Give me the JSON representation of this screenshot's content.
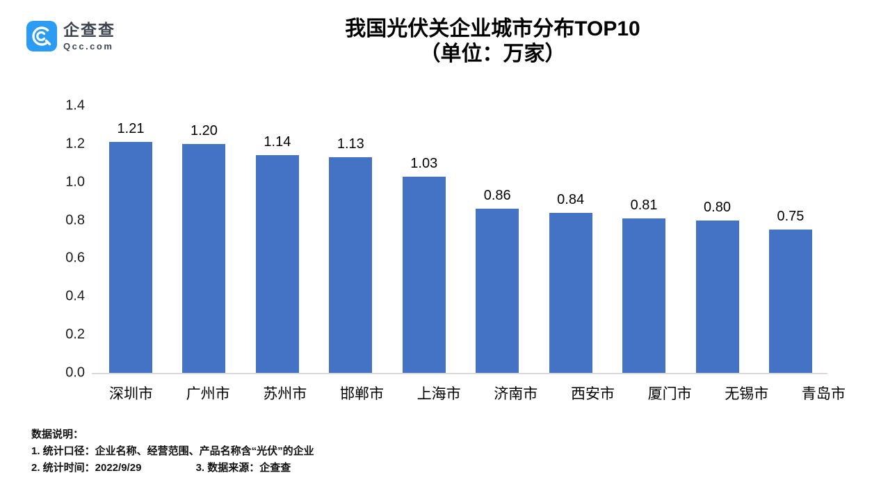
{
  "logo": {
    "brand_cn": "企查查",
    "brand_domain": "Qcc.com",
    "icon_color": "#2b9cf2"
  },
  "title": {
    "line1": "我国光伏关企业城市分布TOP10",
    "line2": "（单位：万家）"
  },
  "chart_data": {
    "type": "bar",
    "title": "我国光伏关企业城市分布TOP10（单位：万家）",
    "categories": [
      "深圳市",
      "广州市",
      "苏州市",
      "邯郸市",
      "上海市",
      "济南市",
      "西安市",
      "厦门市",
      "无锡市",
      "青岛市"
    ],
    "values": [
      1.21,
      1.2,
      1.14,
      1.13,
      1.03,
      0.86,
      0.84,
      0.81,
      0.8,
      0.75
    ],
    "value_labels": [
      "1.21",
      "1.20",
      "1.14",
      "1.13",
      "1.03",
      "0.86",
      "0.84",
      "0.81",
      "0.80",
      "0.75"
    ],
    "xlabel": "",
    "ylabel": "",
    "ylim": [
      0,
      1.4
    ],
    "yticks": [
      "0.0",
      "0.2",
      "0.4",
      "0.6",
      "0.8",
      "1.0",
      "1.2",
      "1.4"
    ],
    "grid": false,
    "legend_position": "none",
    "bar_color": "#4472C4",
    "baseline_color": "#d9d9d9"
  },
  "footnote": {
    "heading": "数据说明：",
    "line1": "1. 统计口径：企业名称、经营范围、产品名称含“光伏”的企业",
    "line2_left": "2. 统计时间：2022/9/29",
    "line2_right": "3. 数据来源：企查查"
  }
}
